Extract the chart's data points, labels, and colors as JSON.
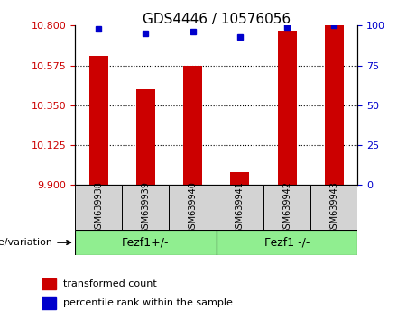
{
  "title": "GDS4446 / 10576056",
  "samples": [
    "GSM639938",
    "GSM639939",
    "GSM639940",
    "GSM639941",
    "GSM639942",
    "GSM639943"
  ],
  "red_values": [
    10.63,
    10.44,
    10.575,
    9.975,
    10.77,
    10.8
  ],
  "blue_values": [
    98,
    95,
    96,
    93,
    99,
    100
  ],
  "ylim_left": [
    9.9,
    10.8
  ],
  "ylim_right": [
    0,
    100
  ],
  "yticks_left": [
    9.9,
    10.125,
    10.35,
    10.575,
    10.8
  ],
  "yticks_right": [
    0,
    25,
    50,
    75,
    100
  ],
  "hlines": [
    10.125,
    10.35,
    10.575
  ],
  "group1": {
    "label": "Fezf1+/-",
    "indices": [
      0,
      1,
      2
    ]
  },
  "group2": {
    "label": "Fezf1 -/-",
    "indices": [
      3,
      4,
      5
    ]
  },
  "group_bg": "#90EE90",
  "tick_bg": "#d3d3d3",
  "bar_color": "#cc0000",
  "dot_color": "#0000cc",
  "bar_width": 0.4,
  "legend_red": "transformed count",
  "legend_blue": "percentile rank within the sample",
  "genotype_label": "genotype/variation"
}
